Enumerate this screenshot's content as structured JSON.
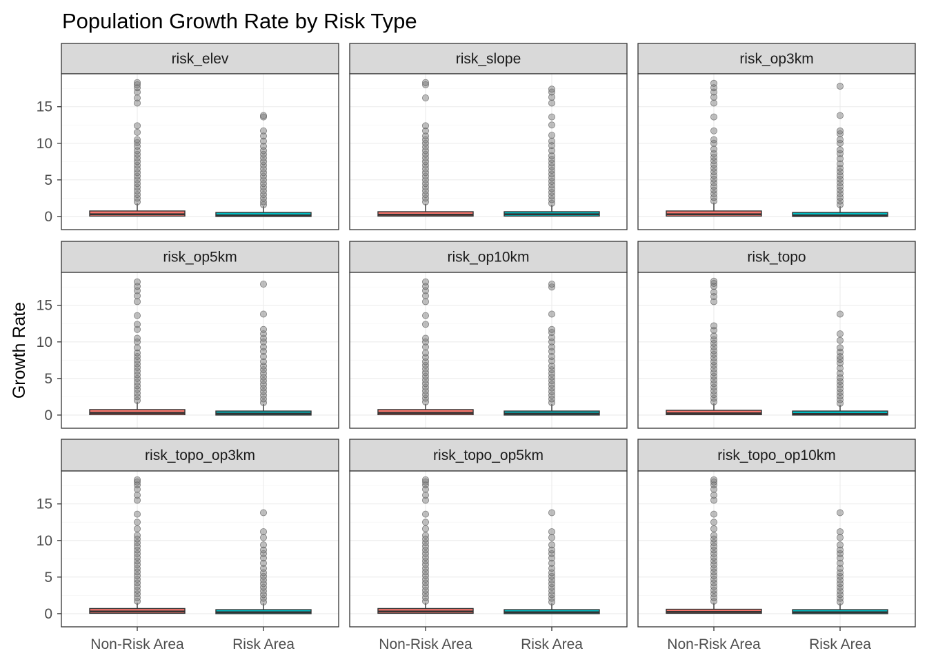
{
  "chart_data": {
    "type": "boxplot",
    "title": "Population Growth Rate by Risk Type",
    "xlabel": "",
    "ylabel": "Growth Rate",
    "categories": [
      "Non-Risk Area",
      "Risk Area"
    ],
    "y_ticks": [
      0,
      5,
      10,
      15
    ],
    "ylim": [
      -1.8,
      19.5
    ],
    "grid": true,
    "legend": "none",
    "colors": {
      "Non-Risk Area": "#F8766D",
      "Risk Area": "#00BFC4",
      "outlier": "#808080",
      "strip_fill": "#D9D9D9",
      "border": "#333333",
      "grid_major": "#EBEBEB",
      "grid_minor": "#F5F5F5"
    },
    "panels": [
      {
        "name": "risk_elev",
        "boxes": [
          {
            "category": "Non-Risk Area",
            "q1": 0.05,
            "median": 0.3,
            "q3": 0.75,
            "whisker_low": 0.0,
            "whisker_high": 1.8,
            "outliers": [
              2.0,
              2.5,
              3.0,
              3.5,
              4.0,
              4.5,
              5.0,
              5.5,
              6.0,
              6.5,
              7.0,
              7.5,
              8.0,
              8.5,
              9.0,
              9.6,
              10.1,
              10.5,
              11.5,
              12.4,
              15.5,
              16.2,
              17.0,
              17.6,
              18.0,
              18.3
            ]
          },
          {
            "category": "Risk Area",
            "q1": 0.0,
            "median": 0.15,
            "q3": 0.55,
            "whisker_low": 0.0,
            "whisker_high": 1.4,
            "outliers": [
              1.6,
              2.0,
              2.5,
              3.0,
              3.5,
              4.0,
              4.5,
              5.0,
              5.5,
              6.0,
              6.5,
              7.0,
              7.5,
              8.0,
              8.5,
              9.0,
              9.6,
              10.3,
              11.0,
              11.7,
              13.6,
              13.8
            ]
          }
        ]
      },
      {
        "name": "risk_slope",
        "boxes": [
          {
            "category": "Non-Risk Area",
            "q1": 0.05,
            "median": 0.25,
            "q3": 0.65,
            "whisker_low": 0.0,
            "whisker_high": 1.7,
            "outliers": [
              2.0,
              2.5,
              3.0,
              3.5,
              4.0,
              4.5,
              5.0,
              5.5,
              6.0,
              6.5,
              7.0,
              7.5,
              8.0,
              8.5,
              9.0,
              9.5,
              10.0,
              10.5,
              11.0,
              11.7,
              12.4,
              16.2,
              18.0,
              18.3
            ]
          },
          {
            "category": "Risk Area",
            "q1": 0.05,
            "median": 0.3,
            "q3": 0.65,
            "whisker_low": 0.0,
            "whisker_high": 1.6,
            "outliers": [
              1.8,
              2.3,
              2.8,
              3.3,
              3.8,
              4.3,
              4.8,
              5.3,
              5.8,
              6.3,
              6.8,
              7.3,
              7.8,
              8.3,
              9.0,
              9.7,
              10.3,
              11.1,
              12.5,
              13.6,
              15.5,
              16.3,
              17.0,
              17.4
            ]
          }
        ]
      },
      {
        "name": "risk_op3km",
        "boxes": [
          {
            "category": "Non-Risk Area",
            "q1": 0.05,
            "median": 0.3,
            "q3": 0.75,
            "whisker_low": 0.0,
            "whisker_high": 1.9,
            "outliers": [
              2.1,
              2.6,
              3.1,
              3.6,
              4.1,
              4.6,
              5.1,
              5.6,
              6.1,
              6.6,
              7.1,
              7.6,
              8.1,
              8.6,
              9.2,
              10.0,
              10.5,
              11.7,
              13.6,
              15.5,
              16.3,
              17.0,
              17.6,
              18.2
            ]
          },
          {
            "category": "Risk Area",
            "q1": 0.0,
            "median": 0.15,
            "q3": 0.55,
            "whisker_low": 0.0,
            "whisker_high": 1.4,
            "outliers": [
              1.6,
              2.1,
              2.6,
              3.1,
              3.6,
              4.1,
              4.6,
              5.1,
              5.6,
              6.1,
              6.6,
              7.2,
              7.9,
              8.6,
              9.1,
              10.0,
              10.5,
              11.3,
              11.7,
              13.8,
              17.8
            ]
          }
        ]
      },
      {
        "name": "risk_op5km",
        "boxes": [
          {
            "category": "Non-Risk Area",
            "q1": 0.05,
            "median": 0.3,
            "q3": 0.75,
            "whisker_low": 0.0,
            "whisker_high": 1.8,
            "outliers": [
              2.0,
              2.5,
              3.0,
              3.5,
              4.0,
              4.5,
              5.0,
              5.5,
              6.0,
              6.5,
              7.0,
              7.5,
              8.0,
              8.5,
              9.2,
              10.0,
              10.5,
              11.7,
              12.4,
              13.6,
              15.5,
              16.3,
              17.0,
              17.6,
              18.2
            ]
          },
          {
            "category": "Risk Area",
            "q1": 0.0,
            "median": 0.2,
            "q3": 0.55,
            "whisker_low": 0.0,
            "whisker_high": 1.5,
            "outliers": [
              1.7,
              2.2,
              2.7,
              3.2,
              3.7,
              4.2,
              4.7,
              5.2,
              5.7,
              6.2,
              6.7,
              7.3,
              8.0,
              8.7,
              9.3,
              10.0,
              10.5,
              11.1,
              11.7,
              13.8,
              17.9
            ]
          }
        ]
      },
      {
        "name": "risk_op10km",
        "boxes": [
          {
            "category": "Non-Risk Area",
            "q1": 0.05,
            "median": 0.3,
            "q3": 0.75,
            "whisker_low": 0.0,
            "whisker_high": 1.5,
            "outliers": [
              1.8,
              2.3,
              2.8,
              3.3,
              3.8,
              4.3,
              4.8,
              5.3,
              5.8,
              6.3,
              6.8,
              7.3,
              7.9,
              8.5,
              9.3,
              10.0,
              10.5,
              12.4,
              13.6,
              15.5,
              16.3,
              17.0,
              17.6,
              18.2
            ]
          },
          {
            "category": "Risk Area",
            "q1": 0.0,
            "median": 0.2,
            "q3": 0.55,
            "whisker_low": 0.0,
            "whisker_high": 1.5,
            "outliers": [
              1.7,
              2.2,
              2.7,
              3.2,
              3.7,
              4.2,
              4.7,
              5.2,
              5.7,
              6.2,
              6.7,
              7.4,
              8.0,
              8.7,
              9.3,
              10.0,
              10.6,
              11.3,
              11.7,
              13.8,
              17.5,
              17.9
            ]
          }
        ]
      },
      {
        "name": "risk_topo",
        "boxes": [
          {
            "category": "Non-Risk Area",
            "q1": 0.05,
            "median": 0.25,
            "q3": 0.65,
            "whisker_low": 0.0,
            "whisker_high": 1.6,
            "outliers": [
              1.8,
              2.3,
              2.8,
              3.3,
              3.8,
              4.3,
              4.8,
              5.3,
              5.8,
              6.3,
              6.8,
              7.3,
              7.8,
              8.3,
              8.8,
              9.3,
              9.8,
              10.3,
              10.8,
              11.6,
              12.2,
              15.5,
              16.2,
              16.8,
              17.6,
              18.0,
              18.3
            ]
          },
          {
            "category": "Risk Area",
            "q1": 0.0,
            "median": 0.15,
            "q3": 0.55,
            "whisker_low": 0.0,
            "whisker_high": 1.4,
            "outliers": [
              1.6,
              2.1,
              2.6,
              3.1,
              3.6,
              4.1,
              4.6,
              5.1,
              5.7,
              6.4,
              7.1,
              7.6,
              8.0,
              8.6,
              9.2,
              10.2,
              11.1,
              13.8
            ]
          }
        ]
      },
      {
        "name": "risk_topo_op3km",
        "boxes": [
          {
            "category": "Non-Risk Area",
            "q1": 0.05,
            "median": 0.3,
            "q3": 0.7,
            "whisker_low": 0.0,
            "whisker_high": 1.5,
            "outliers": [
              1.7,
              2.2,
              2.7,
              3.2,
              3.7,
              4.2,
              4.7,
              5.2,
              5.7,
              6.2,
              6.7,
              7.2,
              7.7,
              8.2,
              8.7,
              9.2,
              9.7,
              10.2,
              10.7,
              11.6,
              12.5,
              13.6,
              15.5,
              16.2,
              17.0,
              17.6,
              18.0,
              18.3
            ]
          },
          {
            "category": "Risk Area",
            "q1": 0.0,
            "median": 0.2,
            "q3": 0.55,
            "whisker_low": 0.0,
            "whisker_high": 1.4,
            "outliers": [
              1.6,
              2.1,
              2.6,
              3.1,
              3.6,
              4.1,
              4.6,
              5.1,
              5.6,
              6.2,
              6.9,
              7.6,
              8.2,
              8.7,
              9.4,
              10.4,
              11.2,
              13.8
            ]
          }
        ]
      },
      {
        "name": "risk_topo_op5km",
        "boxes": [
          {
            "category": "Non-Risk Area",
            "q1": 0.05,
            "median": 0.3,
            "q3": 0.7,
            "whisker_low": 0.0,
            "whisker_high": 1.5,
            "outliers": [
              1.7,
              2.2,
              2.7,
              3.2,
              3.7,
              4.2,
              4.7,
              5.2,
              5.7,
              6.2,
              6.7,
              7.2,
              7.7,
              8.2,
              8.7,
              9.2,
              9.7,
              10.2,
              10.7,
              11.6,
              12.5,
              13.6,
              15.5,
              16.2,
              17.0,
              17.6,
              18.0,
              18.3
            ]
          },
          {
            "category": "Risk Area",
            "q1": 0.0,
            "median": 0.2,
            "q3": 0.55,
            "whisker_low": 0.0,
            "whisker_high": 1.4,
            "outliers": [
              1.6,
              2.1,
              2.6,
              3.1,
              3.6,
              4.1,
              4.6,
              5.1,
              5.6,
              6.2,
              6.9,
              7.6,
              8.2,
              8.7,
              9.4,
              10.4,
              11.2,
              13.8
            ]
          }
        ]
      },
      {
        "name": "risk_topo_op10km",
        "boxes": [
          {
            "category": "Non-Risk Area",
            "q1": 0.05,
            "median": 0.25,
            "q3": 0.6,
            "whisker_low": 0.0,
            "whisker_high": 1.5,
            "outliers": [
              1.7,
              2.2,
              2.7,
              3.2,
              3.7,
              4.2,
              4.7,
              5.2,
              5.7,
              6.2,
              6.7,
              7.2,
              7.7,
              8.2,
              8.7,
              9.2,
              9.7,
              10.2,
              10.7,
              11.6,
              12.5,
              13.6,
              15.5,
              16.2,
              17.0,
              17.6,
              18.0,
              18.3
            ]
          },
          {
            "category": "Risk Area",
            "q1": 0.0,
            "median": 0.2,
            "q3": 0.55,
            "whisker_low": 0.0,
            "whisker_high": 1.4,
            "outliers": [
              1.6,
              2.1,
              2.6,
              3.1,
              3.6,
              4.1,
              4.6,
              5.1,
              5.6,
              6.2,
              6.9,
              7.6,
              8.2,
              8.7,
              9.4,
              10.4,
              11.2,
              13.8
            ]
          }
        ]
      }
    ]
  }
}
